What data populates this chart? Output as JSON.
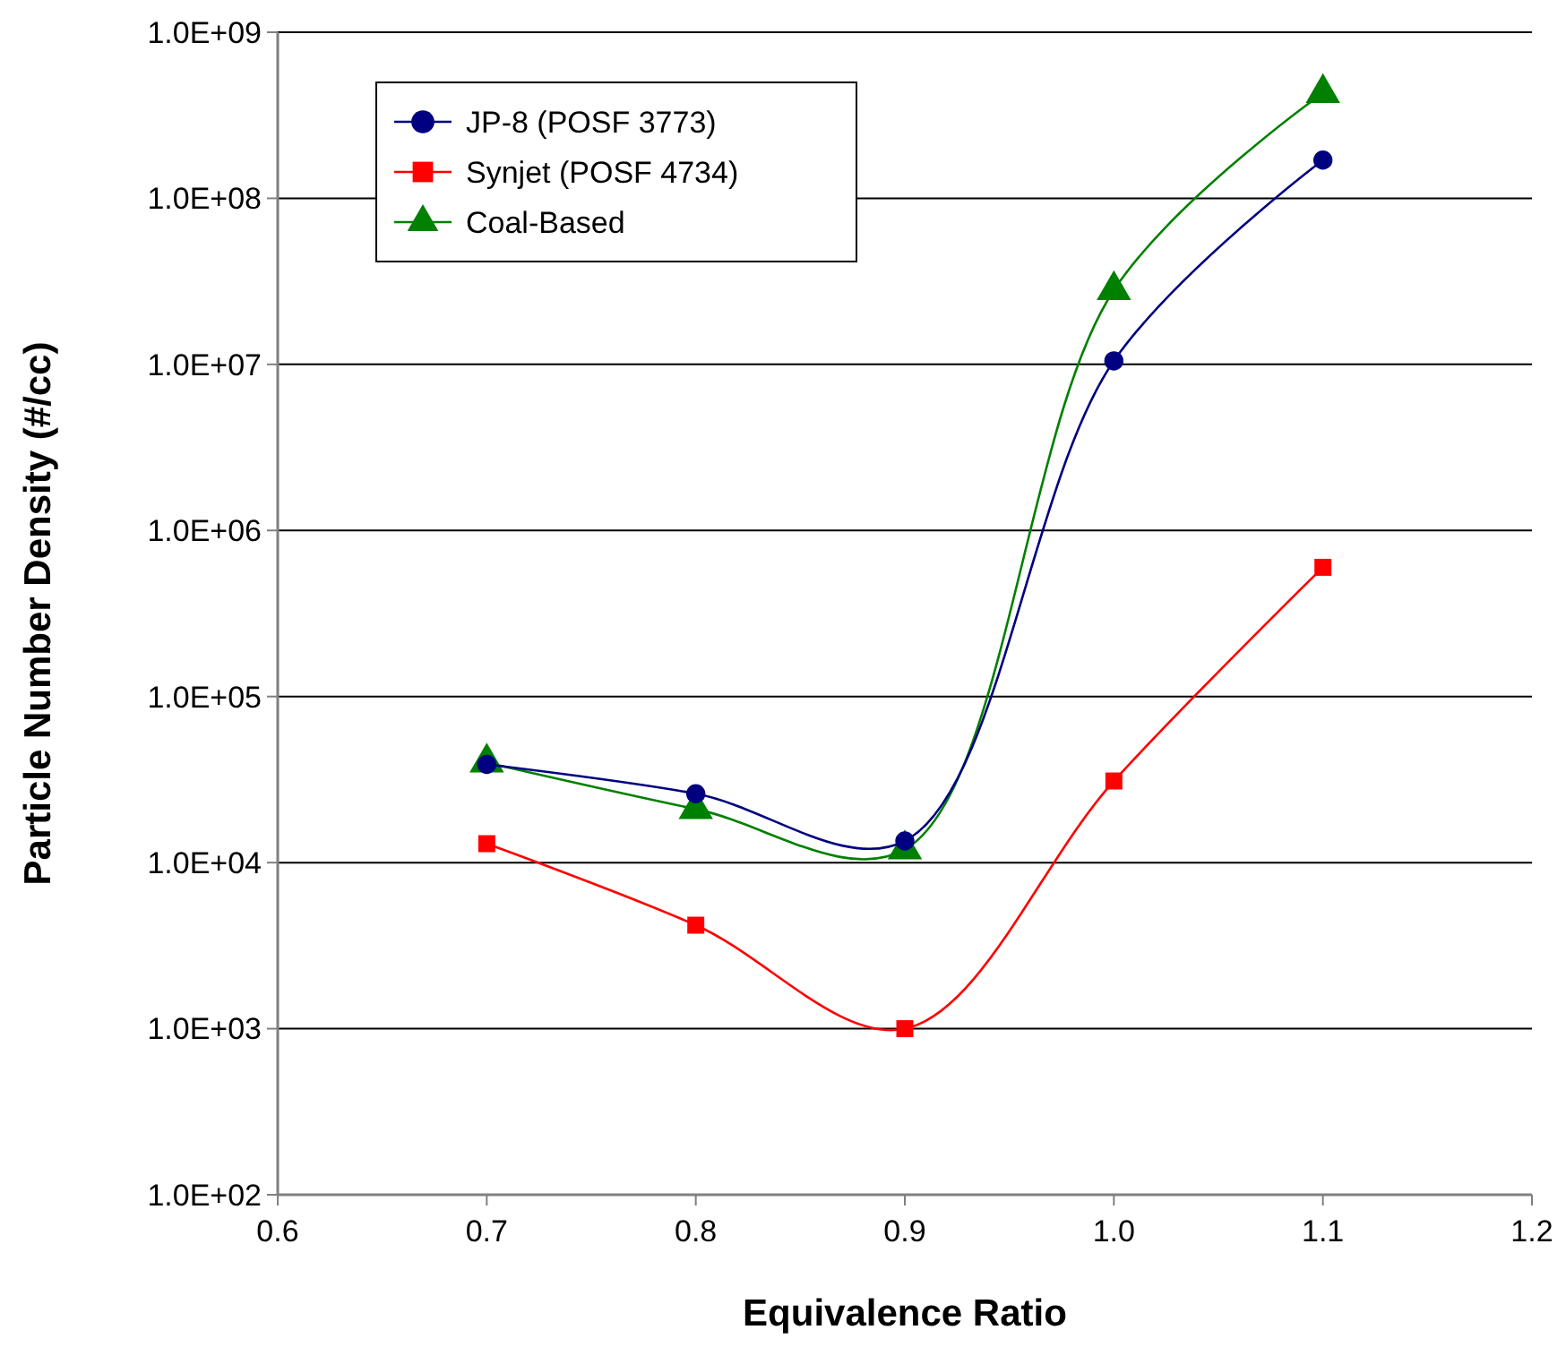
{
  "chart_data": {
    "type": "line",
    "xlabel": "Equivalence Ratio",
    "ylabel": "Particle Number Density (#/cc)",
    "x": [
      0.7,
      0.8,
      0.9,
      1.0,
      1.1
    ],
    "series": [
      {
        "name": "JP-8 (POSF 3773)",
        "color": "#000080",
        "marker": "circle",
        "values": [
          39000,
          26000,
          13500,
          10500000,
          170000000
        ]
      },
      {
        "name": "Synjet (POSF 4734)",
        "color": "#ff0000",
        "marker": "square",
        "values": [
          13000,
          4200,
          1000,
          31000,
          600000
        ]
      },
      {
        "name": "Coal-Based",
        "color": "#008000",
        "marker": "triangle",
        "values": [
          40000,
          21000,
          12000,
          28000000,
          430000000
        ]
      }
    ],
    "log": true,
    "xlim": [
      0.6,
      1.2
    ],
    "xticks": [
      {
        "value": 0.6,
        "label": "0.6"
      },
      {
        "value": 0.7,
        "label": "0.7"
      },
      {
        "value": 0.8,
        "label": "0.8"
      },
      {
        "value": 0.9,
        "label": "0.9"
      },
      {
        "value": 1.0,
        "label": "1.0"
      },
      {
        "value": 1.1,
        "label": "1.1"
      },
      {
        "value": 1.2,
        "label": "1.2"
      }
    ],
    "ylim": [
      100,
      1000000000
    ],
    "yticks": [
      {
        "value": 100,
        "label": "1.0E+02"
      },
      {
        "value": 1000,
        "label": "1.0E+03"
      },
      {
        "value": 10000,
        "label": "1.0E+04"
      },
      {
        "value": 100000,
        "label": "1.0E+05"
      },
      {
        "value": 1000000,
        "label": "1.0E+06"
      },
      {
        "value": 10000000,
        "label": "1.0E+07"
      },
      {
        "value": 100000000,
        "label": "1.0E+08"
      },
      {
        "value": 1000000000,
        "label": "1.0E+09"
      }
    ],
    "grid": "y",
    "legend": "top left",
    "line_style": "solid"
  }
}
